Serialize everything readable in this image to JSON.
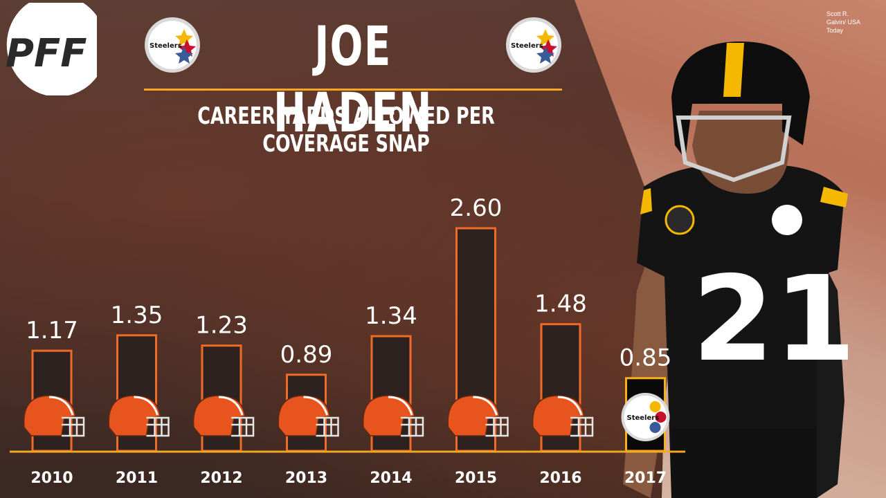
{
  "header": {
    "title": "JOE HADEN",
    "subtitle": "CAREER YARDS ALLOWED PER COVERAGE SNAP",
    "photo_credit": "Scott R. Galvin/ USA Today"
  },
  "logos": {
    "pff": "PFF",
    "steelers": "Steelers"
  },
  "player": {
    "jersey_number": "21"
  },
  "colors": {
    "accent": "#f5a623",
    "browns_bar_border": "#f06a28",
    "steelers_bar_border": "#f5b01a",
    "bar_fill": "#2e2220",
    "steelers_bar_fill": "#0a0a0a",
    "browns_helmet": "#e8541e"
  },
  "chart_data": {
    "type": "bar",
    "title": "CAREER YARDS ALLOWED PER COVERAGE SNAP",
    "xlabel": "",
    "ylabel": "",
    "categories": [
      "2010",
      "2011",
      "2012",
      "2013",
      "2014",
      "2015",
      "2016",
      "2017"
    ],
    "values": [
      1.17,
      1.35,
      1.23,
      0.89,
      1.34,
      2.6,
      1.48,
      0.85
    ],
    "value_labels": [
      "1.17",
      "1.35",
      "1.23",
      "0.89",
      "1.34",
      "2.60",
      "1.48",
      "0.85"
    ],
    "teams": [
      "Browns",
      "Browns",
      "Browns",
      "Browns",
      "Browns",
      "Browns",
      "Browns",
      "Steelers"
    ],
    "ylim": [
      0,
      2.6
    ],
    "grid": false,
    "legend": "none"
  }
}
